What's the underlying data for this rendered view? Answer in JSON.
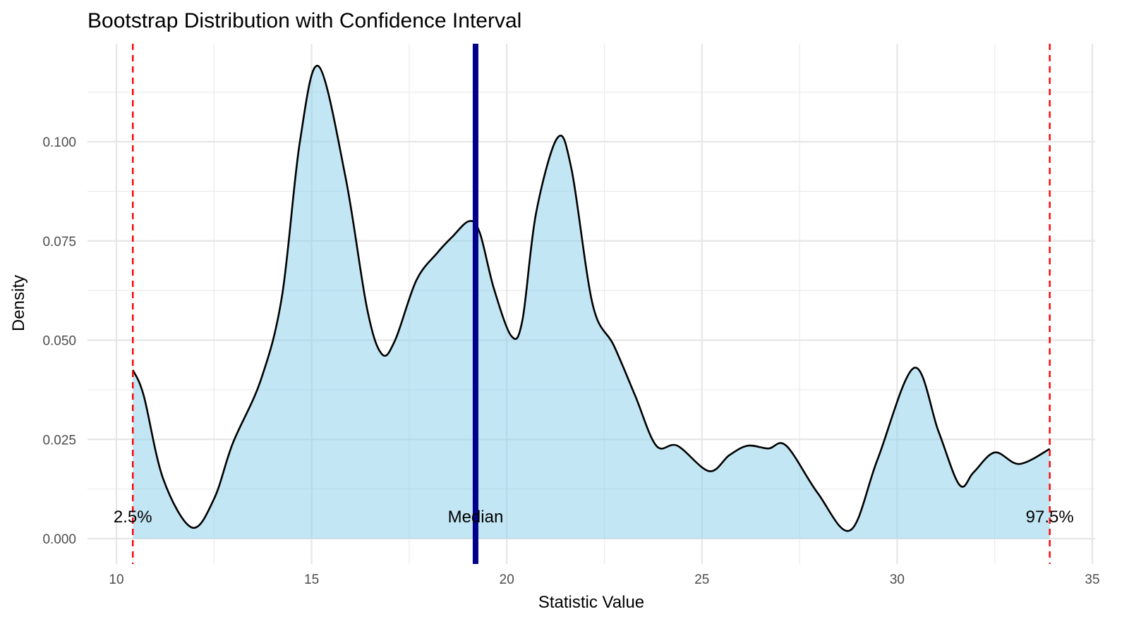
{
  "chart_data": {
    "type": "area",
    "title": "Bootstrap Distribution with Confidence Interval",
    "xlabel": "Statistic Value",
    "ylabel": "Density",
    "xlim": [
      10,
      35
    ],
    "ylim": [
      0,
      0.12
    ],
    "x_ticks": [
      10,
      15,
      20,
      25,
      30,
      35
    ],
    "x_tick_labels": [
      "10",
      "15",
      "20",
      "25",
      "30",
      "35"
    ],
    "y_ticks": [
      0,
      0.025,
      0.05,
      0.075,
      0.1
    ],
    "y_tick_labels": [
      "0.000",
      "0.025",
      "0.050",
      "0.075",
      "0.100"
    ],
    "grid": true,
    "fill_color": "#87CEEB",
    "line_color": "#000000",
    "density": {
      "x": [
        10.42,
        10.7,
        11.2,
        11.93,
        12.5,
        12.98,
        13.7,
        14.24,
        14.7,
        15.18,
        15.87,
        16.42,
        16.8,
        17.14,
        17.68,
        18.22,
        18.6,
        19.04,
        19.31,
        19.67,
        20.12,
        20.4,
        20.75,
        21.3,
        21.66,
        22.2,
        22.74,
        23.29,
        23.83,
        24.37,
        25.18,
        25.7,
        26.17,
        26.7,
        27.16,
        27.97,
        28.8,
        29.5,
        30.43,
        31.06,
        31.6,
        31.96,
        32.5,
        33.13,
        33.91
      ],
      "y": [
        0.0425,
        0.036,
        0.015,
        0.0028,
        0.01,
        0.024,
        0.04,
        0.061,
        0.1,
        0.119,
        0.091,
        0.058,
        0.0465,
        0.05,
        0.065,
        0.072,
        0.076,
        0.08,
        0.077,
        0.063,
        0.051,
        0.055,
        0.082,
        0.101,
        0.093,
        0.059,
        0.0487,
        0.036,
        0.0234,
        0.0234,
        0.017,
        0.021,
        0.0234,
        0.0227,
        0.0234,
        0.0114,
        0.0021,
        0.02,
        0.043,
        0.027,
        0.0135,
        0.0167,
        0.0217,
        0.0188,
        0.0226
      ]
    },
    "reference_lines": [
      {
        "label": "2.5%",
        "x": 10.42,
        "color": "#FF0000",
        "style": "dashed"
      },
      {
        "label": "Median",
        "x": 19.2,
        "color": "#00008B",
        "style": "solid"
      },
      {
        "label": "97.5%",
        "x": 33.91,
        "color": "#FF0000",
        "style": "dashed"
      }
    ]
  }
}
